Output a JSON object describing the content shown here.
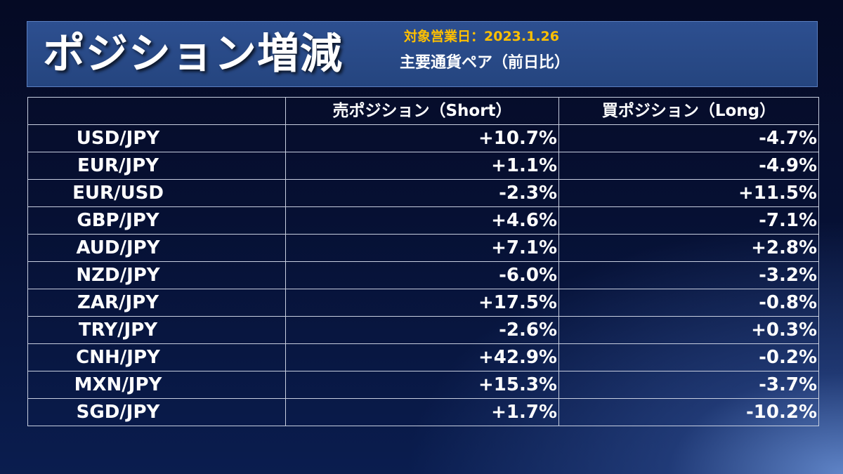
{
  "header": {
    "title": "ポジション増減",
    "date_line": "対象営業日：2023.1.26",
    "subtitle": "主要通貨ペア（前日比）"
  },
  "table": {
    "columns": [
      "",
      "売ポジション（Short）",
      "買ポジション（Long）"
    ],
    "rows": [
      {
        "pair": "USD/JPY",
        "short": "+10.7%",
        "long": "-4.7%"
      },
      {
        "pair": "EUR/JPY",
        "short": "+1.1%",
        "long": "-4.9%"
      },
      {
        "pair": "EUR/USD",
        "short": "-2.3%",
        "long": "+11.5%"
      },
      {
        "pair": "GBP/JPY",
        "short": "+4.6%",
        "long": "-7.1%"
      },
      {
        "pair": "AUD/JPY",
        "short": "+7.1%",
        "long": "+2.8%"
      },
      {
        "pair": "NZD/JPY",
        "short": "-6.0%",
        "long": "-3.2%"
      },
      {
        "pair": "ZAR/JPY",
        "short": "+17.5%",
        "long": "-0.8%"
      },
      {
        "pair": "TRY/JPY",
        "short": "-2.6%",
        "long": "+0.3%"
      },
      {
        "pair": "CNH/JPY",
        "short": "+42.9%",
        "long": "-0.2%"
      },
      {
        "pair": "MXN/JPY",
        "short": "+15.3%",
        "long": "-3.7%"
      },
      {
        "pair": "SGD/JPY",
        "short": "+1.7%",
        "long": "-10.2%"
      }
    ]
  },
  "colors": {
    "header_bg": "#2d4f90",
    "date_text": "#ffc000",
    "text": "#ffffff",
    "grid": "#c8cfe0"
  }
}
